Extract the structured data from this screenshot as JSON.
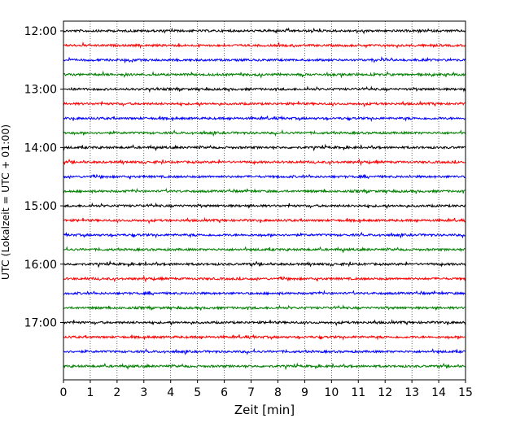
{
  "chart_data": {
    "type": "line",
    "title": "",
    "xlabel": "Zeit  [min]",
    "ylabel": "UTC (Lokalzeit = UTC + 01:00)",
    "xlim": [
      0,
      15
    ],
    "x_ticks": [
      0,
      1,
      2,
      3,
      4,
      5,
      6,
      7,
      8,
      9,
      10,
      11,
      12,
      13,
      14,
      15
    ],
    "x_tick_labels": [
      "0",
      "1",
      "2",
      "3",
      "4",
      "5",
      "6",
      "7",
      "8",
      "9",
      "10",
      "11",
      "12",
      "13",
      "14",
      "15"
    ],
    "ylim": [
      "12:00",
      "17:45"
    ],
    "y_ticks": [
      "12:00",
      "13:00",
      "14:00",
      "15:00",
      "16:00",
      "17:00"
    ],
    "y_axis_inverted": true,
    "grid": "vertical dotted at each minute",
    "legend": "none",
    "trace_interval_minutes": 15,
    "trace_colors": [
      "#000000",
      "#ff0000",
      "#0000ff",
      "#008000"
    ],
    "traces": [
      {
        "start": "12:00",
        "color": "#000000"
      },
      {
        "start": "12:15",
        "color": "#ff0000"
      },
      {
        "start": "12:30",
        "color": "#0000ff"
      },
      {
        "start": "12:45",
        "color": "#008000"
      },
      {
        "start": "13:00",
        "color": "#000000"
      },
      {
        "start": "13:15",
        "color": "#ff0000"
      },
      {
        "start": "13:30",
        "color": "#0000ff"
      },
      {
        "start": "13:45",
        "color": "#008000"
      },
      {
        "start": "14:00",
        "color": "#000000"
      },
      {
        "start": "14:15",
        "color": "#ff0000"
      },
      {
        "start": "14:30",
        "color": "#0000ff"
      },
      {
        "start": "14:45",
        "color": "#008000"
      },
      {
        "start": "15:00",
        "color": "#000000"
      },
      {
        "start": "15:15",
        "color": "#ff0000"
      },
      {
        "start": "15:30",
        "color": "#0000ff"
      },
      {
        "start": "15:45",
        "color": "#008000"
      },
      {
        "start": "16:00",
        "color": "#000000"
      },
      {
        "start": "16:15",
        "color": "#ff0000"
      },
      {
        "start": "16:30",
        "color": "#0000ff"
      },
      {
        "start": "16:45",
        "color": "#008000"
      },
      {
        "start": "17:00",
        "color": "#000000"
      },
      {
        "start": "17:15",
        "color": "#ff0000"
      },
      {
        "start": "17:30",
        "color": "#0000ff"
      },
      {
        "start": "17:45",
        "color": "#008000"
      }
    ]
  }
}
